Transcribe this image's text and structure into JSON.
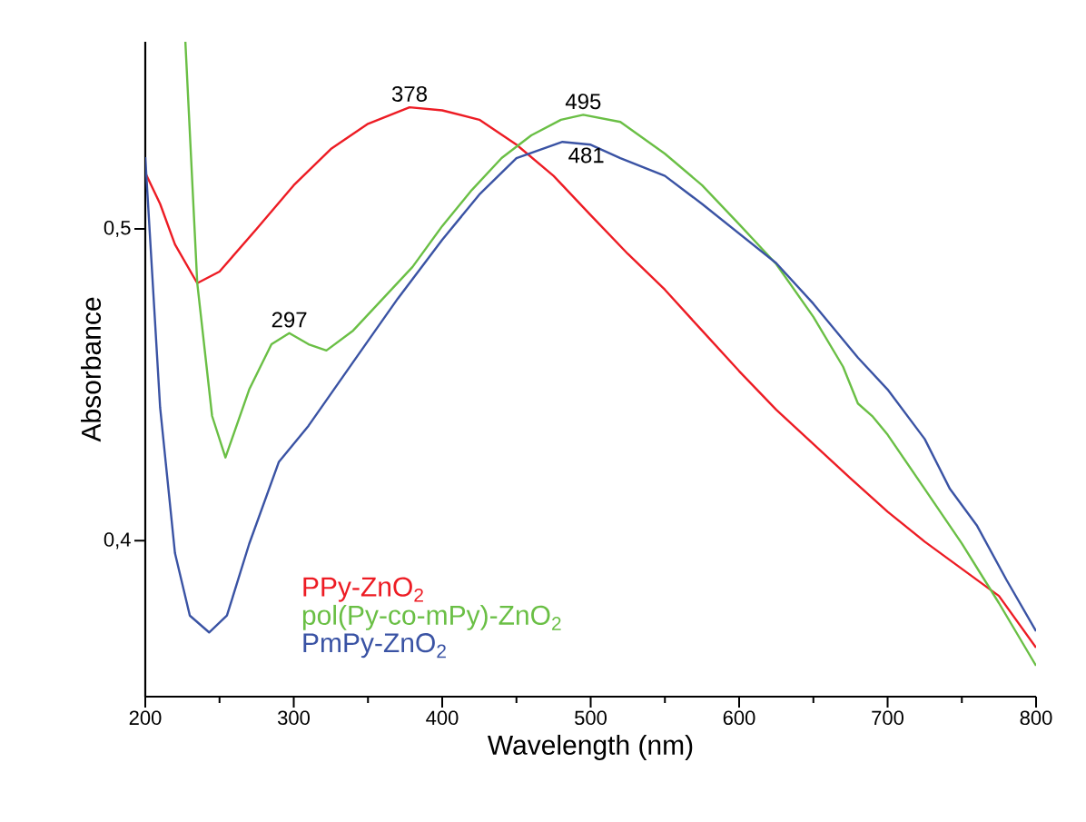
{
  "chart_data": {
    "type": "line",
    "xlabel": "Wavelength (nm)",
    "ylabel": "Absorbance",
    "xlim": [
      200,
      800
    ],
    "xticks": [
      200,
      300,
      400,
      500,
      600,
      700,
      800
    ],
    "ylim": [
      0.35,
      0.56
    ],
    "yticks": [
      {
        "value": 0.4,
        "label": "0,4"
      },
      {
        "value": 0.5,
        "label": "0,5"
      }
    ],
    "grid": false,
    "legend": "bottom left",
    "line_style": "solid",
    "annotations": [
      {
        "text": "297",
        "x": 297,
        "y": 0.4666
      },
      {
        "text": "378",
        "x": 378,
        "y": 0.539
      },
      {
        "text": "481",
        "x": 481,
        "y": 0.5279
      },
      {
        "text": "495",
        "x": 495,
        "y": 0.5366
      }
    ],
    "series": [
      {
        "name": "PPy-ZnO$_{2}$",
        "color": "#ed1c24",
        "x": [
          200,
          210,
          220,
          235,
          250,
          275,
          300,
          325,
          350,
          378,
          400,
          425,
          450,
          475,
          500,
          525,
          550,
          575,
          600,
          625,
          650,
          675,
          700,
          725,
          750,
          775,
          800
        ],
        "values": [
          0.518,
          0.508,
          0.495,
          0.4826,
          0.4863,
          0.5,
          0.514,
          0.5256,
          0.5337,
          0.539,
          0.538,
          0.535,
          0.527,
          0.517,
          0.5044,
          0.492,
          0.4805,
          0.4674,
          0.4544,
          0.442,
          0.431,
          0.42,
          0.4093,
          0.3997,
          0.391,
          0.3823,
          0.3657
        ]
      },
      {
        "name": "pol(Py-co-mPy)-ZnO$_{2}$",
        "color": "#6abf45",
        "x": [
          227,
          235,
          245,
          254,
          270,
          285,
          297,
          310,
          322,
          340,
          360,
          380,
          400,
          420,
          440,
          460,
          480,
          495,
          520,
          550,
          575,
          600,
          625,
          650,
          670,
          680,
          690,
          700,
          725,
          750,
          775,
          800
        ],
        "values": [
          0.56,
          0.4826,
          0.44,
          0.4267,
          0.4485,
          0.463,
          0.4666,
          0.463,
          0.461,
          0.4674,
          0.4776,
          0.4878,
          0.5009,
          0.5125,
          0.5227,
          0.53,
          0.535,
          0.5366,
          0.5343,
          0.5241,
          0.514,
          0.5015,
          0.4887,
          0.4718,
          0.4558,
          0.444,
          0.4398,
          0.434,
          0.4166,
          0.3991,
          0.38,
          0.3599
        ]
      },
      {
        "name": "PmPy-ZnO$_{2}$",
        "color": "#3a53a4",
        "x": [
          200,
          210,
          220,
          230,
          243,
          255,
          270,
          290,
          310,
          340,
          370,
          400,
          425,
          450,
          481,
          500,
          520,
          550,
          575,
          600,
          625,
          650,
          680,
          700,
          725,
          742,
          760,
          780,
          800
        ],
        "values": [
          0.523,
          0.4427,
          0.396,
          0.376,
          0.3706,
          0.376,
          0.399,
          0.4253,
          0.4369,
          0.4573,
          0.4776,
          0.4965,
          0.511,
          0.5227,
          0.5279,
          0.527,
          0.5227,
          0.517,
          0.508,
          0.4985,
          0.489,
          0.476,
          0.4587,
          0.4485,
          0.4326,
          0.4166,
          0.405,
          0.3875,
          0.371
        ]
      }
    ]
  }
}
